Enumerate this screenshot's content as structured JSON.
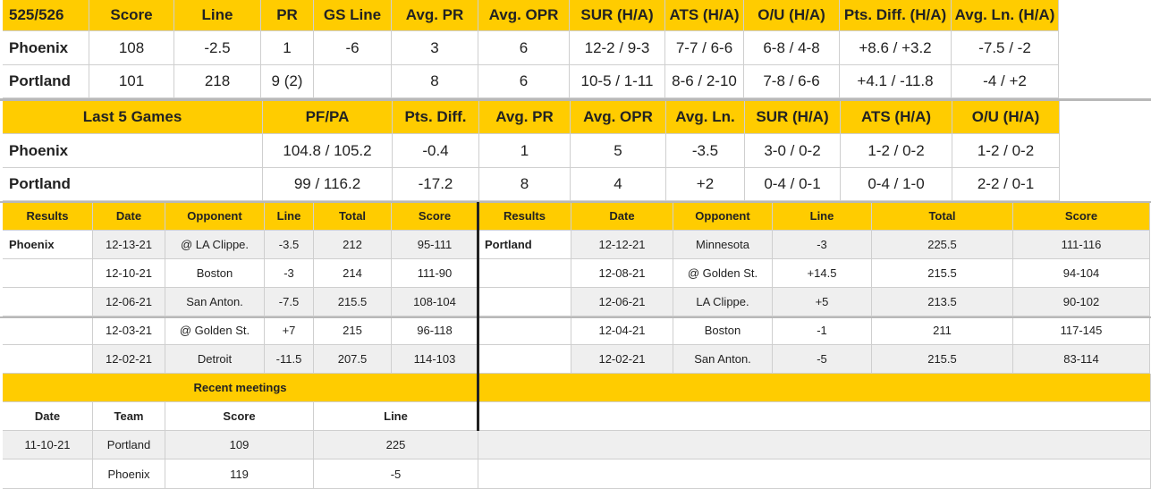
{
  "matchup": {
    "headers": [
      "525/526",
      "Score",
      "Line",
      "PR",
      "GS Line",
      "Avg. PR",
      "Avg. OPR",
      "SUR (H/A)",
      "ATS (H/A)",
      "O/U (H/A)",
      "Pts. Diff. (H/A)",
      "Avg. Ln. (H/A)"
    ],
    "rows": [
      [
        "Phoenix",
        "108",
        "-2.5",
        "1",
        "-6",
        "3",
        "6",
        "12-2 / 9-3",
        "7-7 / 6-6",
        "6-8 / 4-8",
        "+8.6 / +3.2",
        "-7.5 / -2"
      ],
      [
        "Portland",
        "101",
        "218",
        "9 (2)",
        "",
        "8",
        "6",
        "10-5 / 1-11",
        "8-6 / 2-10",
        "7-8 / 6-6",
        "+4.1 / -11.8",
        "-4 / +2"
      ]
    ]
  },
  "last5": {
    "headers": [
      "Last 5 Games",
      "PF/PA",
      "Pts. Diff.",
      "Avg. PR",
      "Avg. OPR",
      "Avg. Ln.",
      "SUR (H/A)",
      "ATS (H/A)",
      "O/U (H/A)"
    ],
    "rows": [
      [
        "Phoenix",
        "104.8 / 105.2",
        "-0.4",
        "1",
        "5",
        "-3.5",
        "3-0 / 0-2",
        "1-2 / 0-2",
        "1-2 / 0-2"
      ],
      [
        "Portland",
        "99 / 116.2",
        "-17.2",
        "8",
        "4",
        "+2",
        "0-4 / 0-1",
        "0-4 / 1-0",
        "2-2 / 0-1"
      ]
    ]
  },
  "results": {
    "headers": [
      "Results",
      "Date",
      "Opponent",
      "Line",
      "Total",
      "Score"
    ],
    "left_team": "Phoenix",
    "left_rows": [
      [
        "12-13-21",
        "@ LA Clippe.",
        "-3.5",
        "212",
        "95-111"
      ],
      [
        "12-10-21",
        "Boston",
        "-3",
        "214",
        "111-90"
      ],
      [
        "12-06-21",
        "San Anton.",
        "-7.5",
        "215.5",
        "108-104"
      ],
      [
        "12-03-21",
        "@ Golden St.",
        "+7",
        "215",
        "96-118"
      ],
      [
        "12-02-21",
        "Detroit",
        "-11.5",
        "207.5",
        "114-103"
      ]
    ],
    "right_team": "Portland",
    "right_rows": [
      [
        "12-12-21",
        "Minnesota",
        "-3",
        "225.5",
        "111-116"
      ],
      [
        "12-08-21",
        "@ Golden St.",
        "+14.5",
        "215.5",
        "94-104"
      ],
      [
        "12-06-21",
        "LA Clippe.",
        "+5",
        "213.5",
        "90-102"
      ],
      [
        "12-04-21",
        "Boston",
        "-1",
        "211",
        "117-145"
      ],
      [
        "12-02-21",
        "San Anton.",
        "-5",
        "215.5",
        "83-114"
      ]
    ]
  },
  "recent": {
    "title": "Recent meetings",
    "headers": [
      "Date",
      "Team",
      "Score",
      "Line"
    ],
    "rows": [
      [
        "11-10-21",
        "Portland",
        "109",
        "225"
      ],
      [
        "",
        "Phoenix",
        "119",
        "-5"
      ]
    ]
  },
  "colors": {
    "header": "#ffcc00",
    "alt_row": "#efefef",
    "border": "#cfcfcf"
  }
}
